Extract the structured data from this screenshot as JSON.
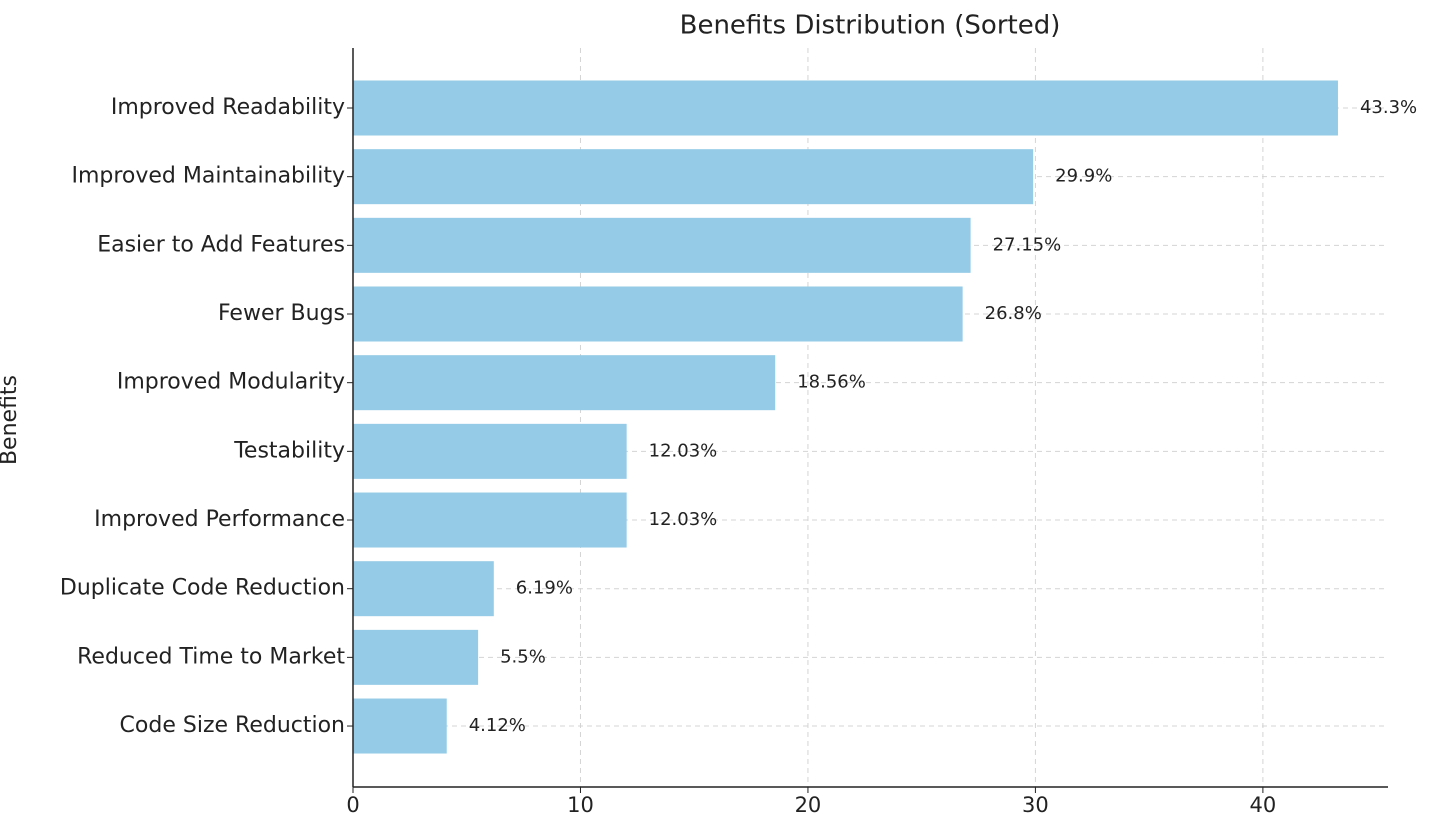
{
  "chart_data": {
    "type": "hbar",
    "title": "Benefits Distribution (Sorted)",
    "y_label": "Benefits",
    "categories": [
      "Improved Readability",
      "Improved Maintainability",
      "Easier to Add Features",
      "Fewer Bugs",
      "Improved Modularity",
      "Testability",
      "Improved Performance",
      "Duplicate Code Reduction",
      "Reduced Time to Market",
      "Code Size Reduction"
    ],
    "values": [
      43.3,
      29.9,
      27.15,
      26.8,
      18.56,
      12.03,
      12.03,
      6.19,
      5.5,
      4.12
    ],
    "value_labels": [
      "43.3%",
      "29.9%",
      "27.15%",
      "26.8%",
      "18.56%",
      "12.03%",
      "12.03%",
      "6.19%",
      "5.5%",
      "4.12%"
    ],
    "color": "#95cbe6",
    "xlim": [
      0,
      45.5
    ],
    "xticks": [
      0,
      10,
      20,
      30,
      40
    ],
    "grid": true
  }
}
